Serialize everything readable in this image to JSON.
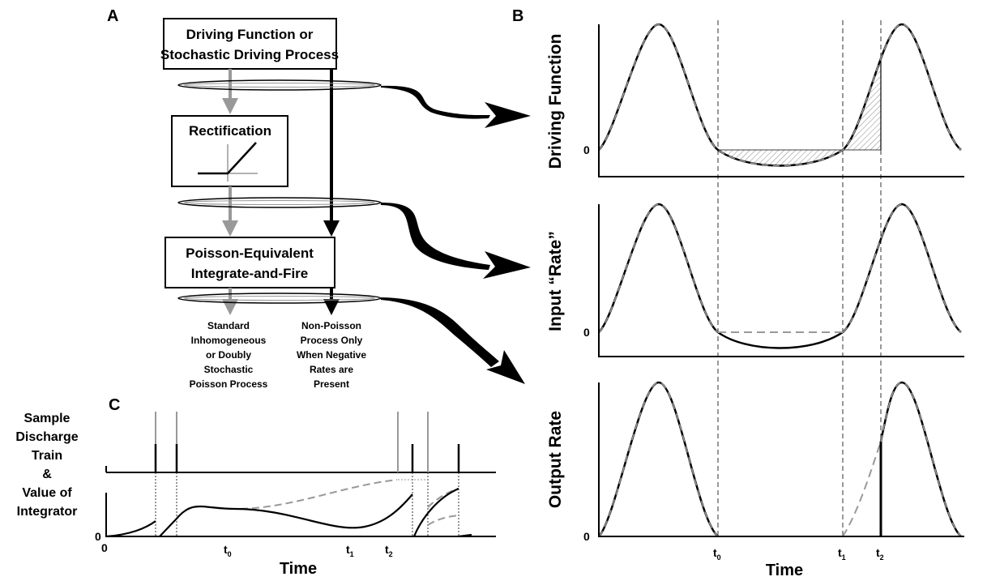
{
  "panels": {
    "a": {
      "label": "A",
      "top_box": [
        "Driving Function or",
        "Stochastic Driving Process"
      ],
      "rect_box": "Rectification",
      "if_box": [
        "Poisson-Equivalent",
        "Integrate-and-Fire"
      ],
      "left_note": [
        "Standard",
        "Inhomogeneous",
        "or Doubly",
        "Stochastic",
        "Poisson Process"
      ],
      "right_note": [
        "Non-Poisson",
        "Process Only",
        "When Negative",
        "Rates are",
        "Present"
      ]
    },
    "b": {
      "label": "B",
      "ylabels": [
        "Driving Function",
        "Input “Rate”",
        "Output Rate"
      ],
      "zero": "0",
      "xlabel": "Time",
      "t0": "t",
      "t0_sub": "0",
      "t1": "t",
      "t1_sub": "1",
      "t2": "t",
      "t2_sub": "2"
    },
    "c": {
      "label": "C",
      "side_label": [
        "Sample",
        "Discharge",
        "Train",
        "&",
        "Value of",
        "Integrator"
      ],
      "zero_y": "0",
      "zero_x": "0",
      "xlabel": "Time",
      "t0": "t",
      "t0_sub": "0",
      "t1": "t",
      "t1_sub": "1",
      "t2": "t",
      "t2_sub": "2"
    }
  },
  "colors": {
    "ink": "#000000",
    "gray": "#999999",
    "light_gray": "#bbbbbb",
    "hatch": "#888888"
  }
}
